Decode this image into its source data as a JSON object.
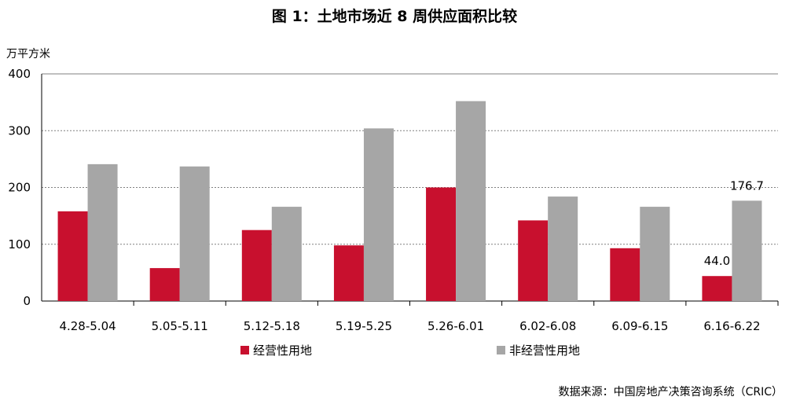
{
  "chart_data": {
    "type": "bar",
    "title": "图 1：土地市场近 8 周供应面积比较",
    "ylabel": "万平方米",
    "ylim": [
      0,
      400
    ],
    "yticks": [
      "0",
      "100",
      "200",
      "300",
      "400"
    ],
    "grid": true,
    "legend_position": "bottom",
    "categories": [
      "4.28-5.04",
      "5.05-5.11",
      "5.12-5.18",
      "5.19-5.25",
      "5.26-6.01",
      "6.02-6.08",
      "6.09-6.15",
      "6.16-6.22"
    ],
    "series": [
      {
        "name": "经营性用地",
        "color": "#C8102E",
        "values": [
          158,
          58,
          125,
          98,
          200,
          142,
          93,
          44.0
        ]
      },
      {
        "name": "非经营性用地",
        "color": "#A6A6A6",
        "values": [
          241,
          237,
          166,
          304,
          352,
          184,
          166,
          176.7
        ]
      }
    ],
    "data_labels": [
      {
        "series": 0,
        "index": 7,
        "text": "44.0"
      },
      {
        "series": 1,
        "index": 7,
        "text": "176.7"
      }
    ]
  },
  "source": "数据来源：中国房地产决策咨询系统（CRIC）"
}
